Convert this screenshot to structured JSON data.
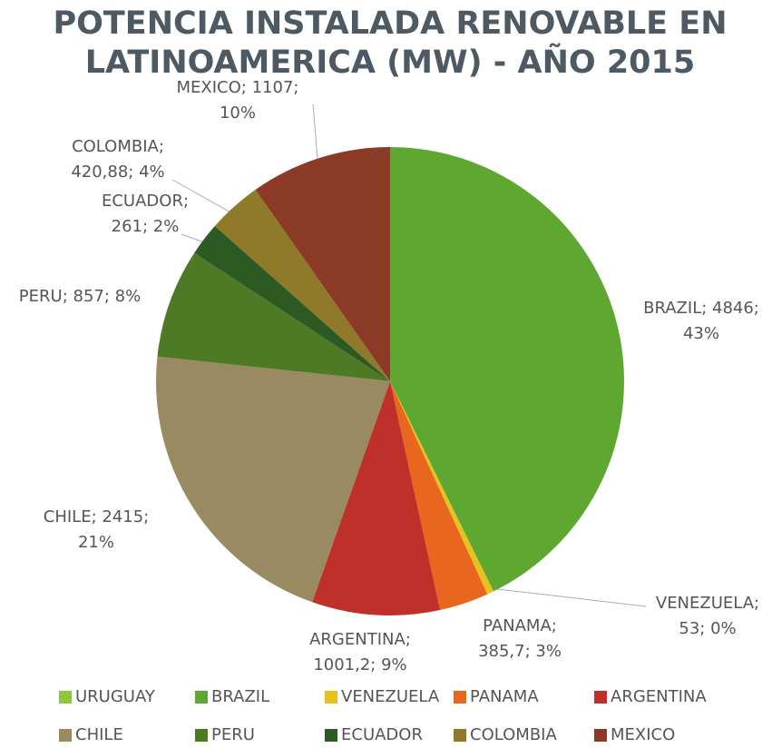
{
  "chart_data": {
    "type": "pie",
    "title": [
      "POTENCIA INSTALADA RENOVABLE EN",
      "LATINOAMERICA (MW) - AÑO 2015"
    ],
    "categories": [
      "URUGUAY",
      "BRAZIL",
      "VENEZUELA",
      "PANAMA",
      "ARGENTINA",
      "CHILE",
      "PERU",
      "ECUADOR",
      "COLOMBIA",
      "MEXICO"
    ],
    "values": [
      0,
      4846,
      53,
      385.7,
      1001.2,
      2415,
      857,
      261,
      420.88,
      1107
    ],
    "value_labels": [
      null,
      [
        "BRAZIL; 4846;",
        "43%"
      ],
      [
        "VENEZUELA;",
        "53; 0%"
      ],
      [
        "PANAMA;",
        "385,7; 3%"
      ],
      [
        "ARGENTINA;",
        "1001,2; 9%"
      ],
      [
        "CHILE; 2415;",
        "21%"
      ],
      [
        "PERU; 857; 8%"
      ],
      [
        "ECUADOR;",
        "261; 2%"
      ],
      [
        "COLOMBIA;",
        "420,88; 4%"
      ],
      [
        "MEXICO; 1107;",
        "10%"
      ]
    ],
    "colors": [
      "#8dc63f",
      "#5ea832",
      "#e6c21e",
      "#e8661e",
      "#c0302a",
      "#9a8a62",
      "#4e7a26",
      "#2c5a22",
      "#8f7a2a",
      "#8b3a26"
    ],
    "legend": "bottom"
  }
}
